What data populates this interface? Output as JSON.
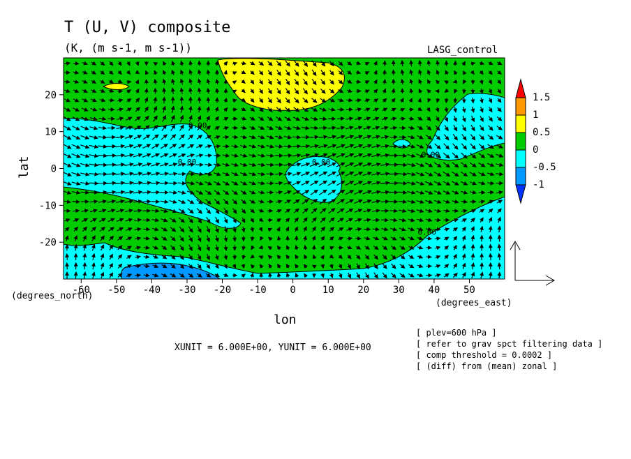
{
  "chart_data": {
    "type": "heatmap",
    "title": "T (U, V) composite",
    "subtitle": "(K, (m s-1, m s-1))",
    "run_label": "LASG_control",
    "xlabel": "lon",
    "ylabel": "lat",
    "x_unit_label": "(degrees_east)",
    "y_unit_label": "(degrees_north)",
    "xlim": [
      -65,
      60
    ],
    "ylim": [
      -30,
      30
    ],
    "x_ticks": [
      -60,
      -50,
      -40,
      -30,
      -20,
      -10,
      0,
      10,
      20,
      30,
      40,
      50
    ],
    "y_ticks": [
      -20,
      -10,
      0,
      10,
      20
    ],
    "colorbar": {
      "levels": [
        "1.5",
        "1",
        "0.5",
        "0",
        "-0.5",
        "-1"
      ],
      "colors": [
        "#ff0000",
        "#ff9900",
        "#ffff00",
        "#00cc00",
        "#00ffff",
        "#0099ff",
        "#0033ff"
      ]
    },
    "contour_labels": [
      {
        "text": "0.00",
        "lon": -30,
        "lat": 1
      },
      {
        "text": "0.00",
        "lon": -27,
        "lat": 11
      },
      {
        "text": "0.00",
        "lon": 8,
        "lat": 1
      },
      {
        "text": "0.00",
        "lon": 39,
        "lat": 3
      },
      {
        "text": "0.00",
        "lon": 38,
        "lat": -18
      }
    ],
    "vector_reference": {
      "xunit": 6.0,
      "yunit": 6.0
    }
  },
  "footer": {
    "vector_units": "XUNIT = 6.000E+00, YUNIT = 6.000E+00",
    "info_lines": [
      "[ plev=600 hPa ]",
      "[ refer to grav spct filtering data ]",
      "[ comp threshold = 0.0002 ]",
      "[ (diff) from (mean) zonal ]"
    ]
  }
}
